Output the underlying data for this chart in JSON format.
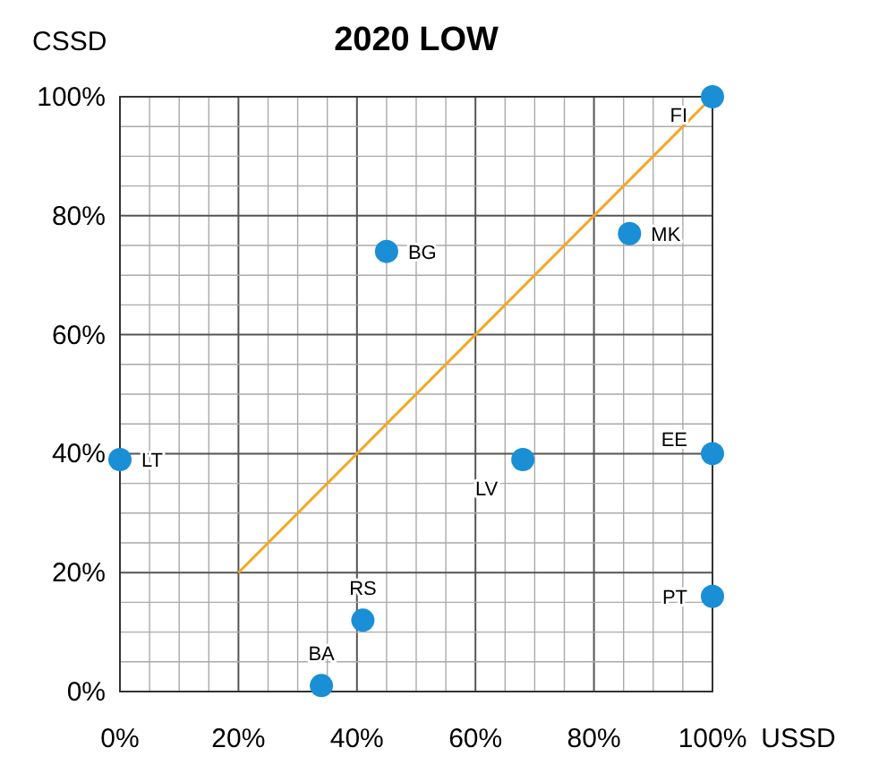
{
  "chart_data": {
    "type": "scatter",
    "title": "2020 LOW",
    "xlabel": "USSD",
    "ylabel": "CSSD",
    "xlim": [
      0,
      100
    ],
    "ylim": [
      0,
      100
    ],
    "xticks": [
      {
        "value": 0,
        "label": "0%"
      },
      {
        "value": 5,
        "label": null
      },
      {
        "value": 10,
        "label": null
      },
      {
        "value": 15,
        "label": null
      },
      {
        "value": 20,
        "label": "20%"
      },
      {
        "value": 25,
        "label": null
      },
      {
        "value": 30,
        "label": null
      },
      {
        "value": 35,
        "label": null
      },
      {
        "value": 40,
        "label": "40%"
      },
      {
        "value": 45,
        "label": null
      },
      {
        "value": 50,
        "label": null
      },
      {
        "value": 55,
        "label": null
      },
      {
        "value": 60,
        "label": "60%"
      },
      {
        "value": 65,
        "label": null
      },
      {
        "value": 70,
        "label": null
      },
      {
        "value": 75,
        "label": null
      },
      {
        "value": 80,
        "label": "80%"
      },
      {
        "value": 85,
        "label": null
      },
      {
        "value": 90,
        "label": null
      },
      {
        "value": 95,
        "label": null
      },
      {
        "value": 100,
        "label": "100%"
      }
    ],
    "yticks": [
      {
        "value": 0,
        "label": "0%"
      },
      {
        "value": 5,
        "label": null
      },
      {
        "value": 10,
        "label": null
      },
      {
        "value": 15,
        "label": null
      },
      {
        "value": 20,
        "label": "20%"
      },
      {
        "value": 25,
        "label": null
      },
      {
        "value": 30,
        "label": null
      },
      {
        "value": 35,
        "label": null
      },
      {
        "value": 40,
        "label": "40%"
      },
      {
        "value": 45,
        "label": null
      },
      {
        "value": 50,
        "label": null
      },
      {
        "value": 55,
        "label": null
      },
      {
        "value": 60,
        "label": "60%"
      },
      {
        "value": 65,
        "label": null
      },
      {
        "value": 70,
        "label": null
      },
      {
        "value": 75,
        "label": null
      },
      {
        "value": 80,
        "label": "80%"
      },
      {
        "value": 85,
        "label": null
      },
      {
        "value": 90,
        "label": null
      },
      {
        "value": 95,
        "label": null
      },
      {
        "value": 100,
        "label": "100%"
      }
    ],
    "grid": true,
    "series": [
      {
        "type": "line",
        "color": "#f5a623",
        "x": [
          20,
          100
        ],
        "values": [
          20,
          100
        ]
      },
      {
        "color": "#1a8fd6",
        "x": [
          0,
          45,
          86,
          100,
          100,
          68,
          100,
          41,
          34
        ],
        "values": [
          39,
          74,
          77,
          100,
          40,
          39,
          16,
          12,
          1
        ],
        "marker": "circle"
      }
    ],
    "annotations": [
      {
        "text": "LT",
        "x": 0,
        "y": 39
      },
      {
        "text": "BG",
        "x": 45,
        "y": 74
      },
      {
        "text": "MK",
        "x": 86,
        "y": 77
      },
      {
        "text": "FI",
        "x": 100,
        "y": 100
      },
      {
        "text": "EE",
        "x": 100,
        "y": 40
      },
      {
        "text": "LV",
        "x": 68,
        "y": 39
      },
      {
        "text": "PT",
        "x": 100,
        "y": 16
      },
      {
        "text": "RS",
        "x": 41,
        "y": 12
      },
      {
        "text": "BA",
        "x": 34,
        "y": 1
      }
    ]
  }
}
